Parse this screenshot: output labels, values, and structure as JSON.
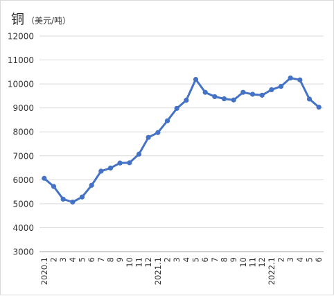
{
  "title": "铜",
  "unit": "（美元/吨）",
  "chart_data": {
    "type": "line",
    "title": "铜",
    "ylabel": "（美元/吨）",
    "xlabel": "",
    "ylim": [
      3000,
      12000
    ],
    "yticks": [
      3000,
      4000,
      5000,
      6000,
      7000,
      8000,
      9000,
      10000,
      11000,
      12000
    ],
    "categories": [
      "2020.1",
      "2",
      "3",
      "4",
      "5",
      "6",
      "7",
      "8",
      "9",
      "10",
      "11",
      "12",
      "2021.1",
      "2",
      "3",
      "4",
      "5",
      "6",
      "7",
      "8",
      "9",
      "10",
      "11",
      "12",
      "2022.1",
      "2",
      "3",
      "4",
      "5",
      "6"
    ],
    "values": [
      6060,
      5720,
      5190,
      5070,
      5280,
      5770,
      6360,
      6490,
      6700,
      6710,
      7070,
      7770,
      7970,
      8460,
      8980,
      9320,
      10190,
      9650,
      9470,
      9380,
      9330,
      9650,
      9570,
      9530,
      9760,
      9900,
      10250,
      10170,
      9370,
      9030
    ],
    "grid": true,
    "legend": "none",
    "color": "#4472c4"
  }
}
